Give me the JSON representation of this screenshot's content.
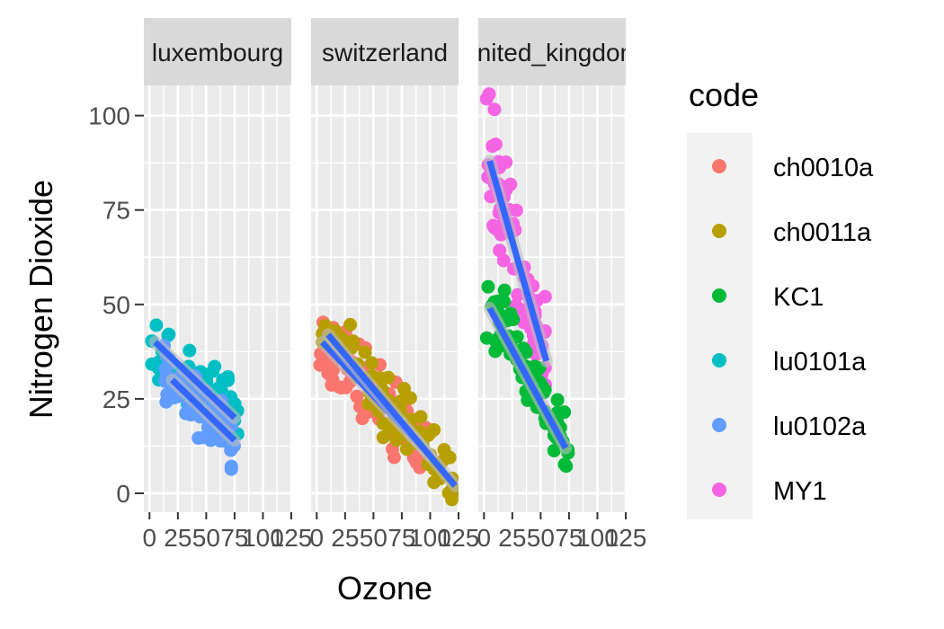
{
  "chart_data": {
    "type": "scatter",
    "xlabel": "Ozone",
    "ylabel": "Nitrogen Dioxide",
    "xlim": [
      -5,
      125
    ],
    "ylim": [
      -5,
      108
    ],
    "x_ticks": [
      0,
      25,
      50,
      75,
      100,
      125
    ],
    "x_tick_labels": [
      "0",
      "25",
      "50",
      "75",
      "100",
      "125"
    ],
    "y_ticks": [
      0,
      25,
      50,
      75,
      100
    ],
    "y_tick_labels": [
      "0",
      "25",
      "50",
      "75",
      "100"
    ],
    "grid": true,
    "legend": {
      "title": "code",
      "position": "right",
      "entries": [
        {
          "label": "ch0010a",
          "color": "#F8766D"
        },
        {
          "label": "ch0011a",
          "color": "#B79F00"
        },
        {
          "label": "KC1",
          "color": "#00BA38"
        },
        {
          "label": "lu0101a",
          "color": "#00BFC4"
        },
        {
          "label": "lu0102a",
          "color": "#619CFF"
        },
        {
          "label": "MY1",
          "color": "#F564E3"
        }
      ]
    },
    "trend_line_color": "#3366FF",
    "panels": [
      {
        "strip": "luxembourg",
        "series": [
          {
            "code": "lu0101a",
            "x_range": [
              2,
              78
            ],
            "y_center": 34,
            "spread": 5,
            "trend": {
              "x": [
                5,
                75
              ],
              "y": [
                40,
                20
              ]
            }
          },
          {
            "code": "lu0102a",
            "x_range": [
              12,
              75
            ],
            "y_center": 24,
            "spread": 5,
            "trend": {
              "x": [
                20,
                75
              ],
              "y": [
                30,
                14
              ]
            }
          }
        ]
      },
      {
        "strip": "switzerland",
        "series": [
          {
            "code": "ch0010a",
            "x_range": [
              2,
              100
            ],
            "y_center": 26,
            "spread": 6,
            "trend": {
              "x": [
                5,
                100
              ],
              "y": [
                40,
                10
              ]
            }
          },
          {
            "code": "ch0011a",
            "x_range": [
              5,
              122
            ],
            "y_center": 26,
            "spread": 6,
            "trend": {
              "x": [
                10,
                122
              ],
              "y": [
                42,
                2
              ]
            }
          }
        ]
      },
      {
        "strip": "united_kingdom",
        "series": [
          {
            "code": "MY1",
            "x_range": [
              2,
              55
            ],
            "y_center": 70,
            "spread": 10,
            "trend": {
              "x": [
                5,
                55
              ],
              "y": [
                88,
                35
              ]
            }
          },
          {
            "code": "KC1",
            "x_range": [
              2,
              75
            ],
            "y_center": 30,
            "spread": 7,
            "trend": {
              "x": [
                5,
                72
              ],
              "y": [
                49,
                12
              ]
            }
          }
        ]
      }
    ]
  }
}
